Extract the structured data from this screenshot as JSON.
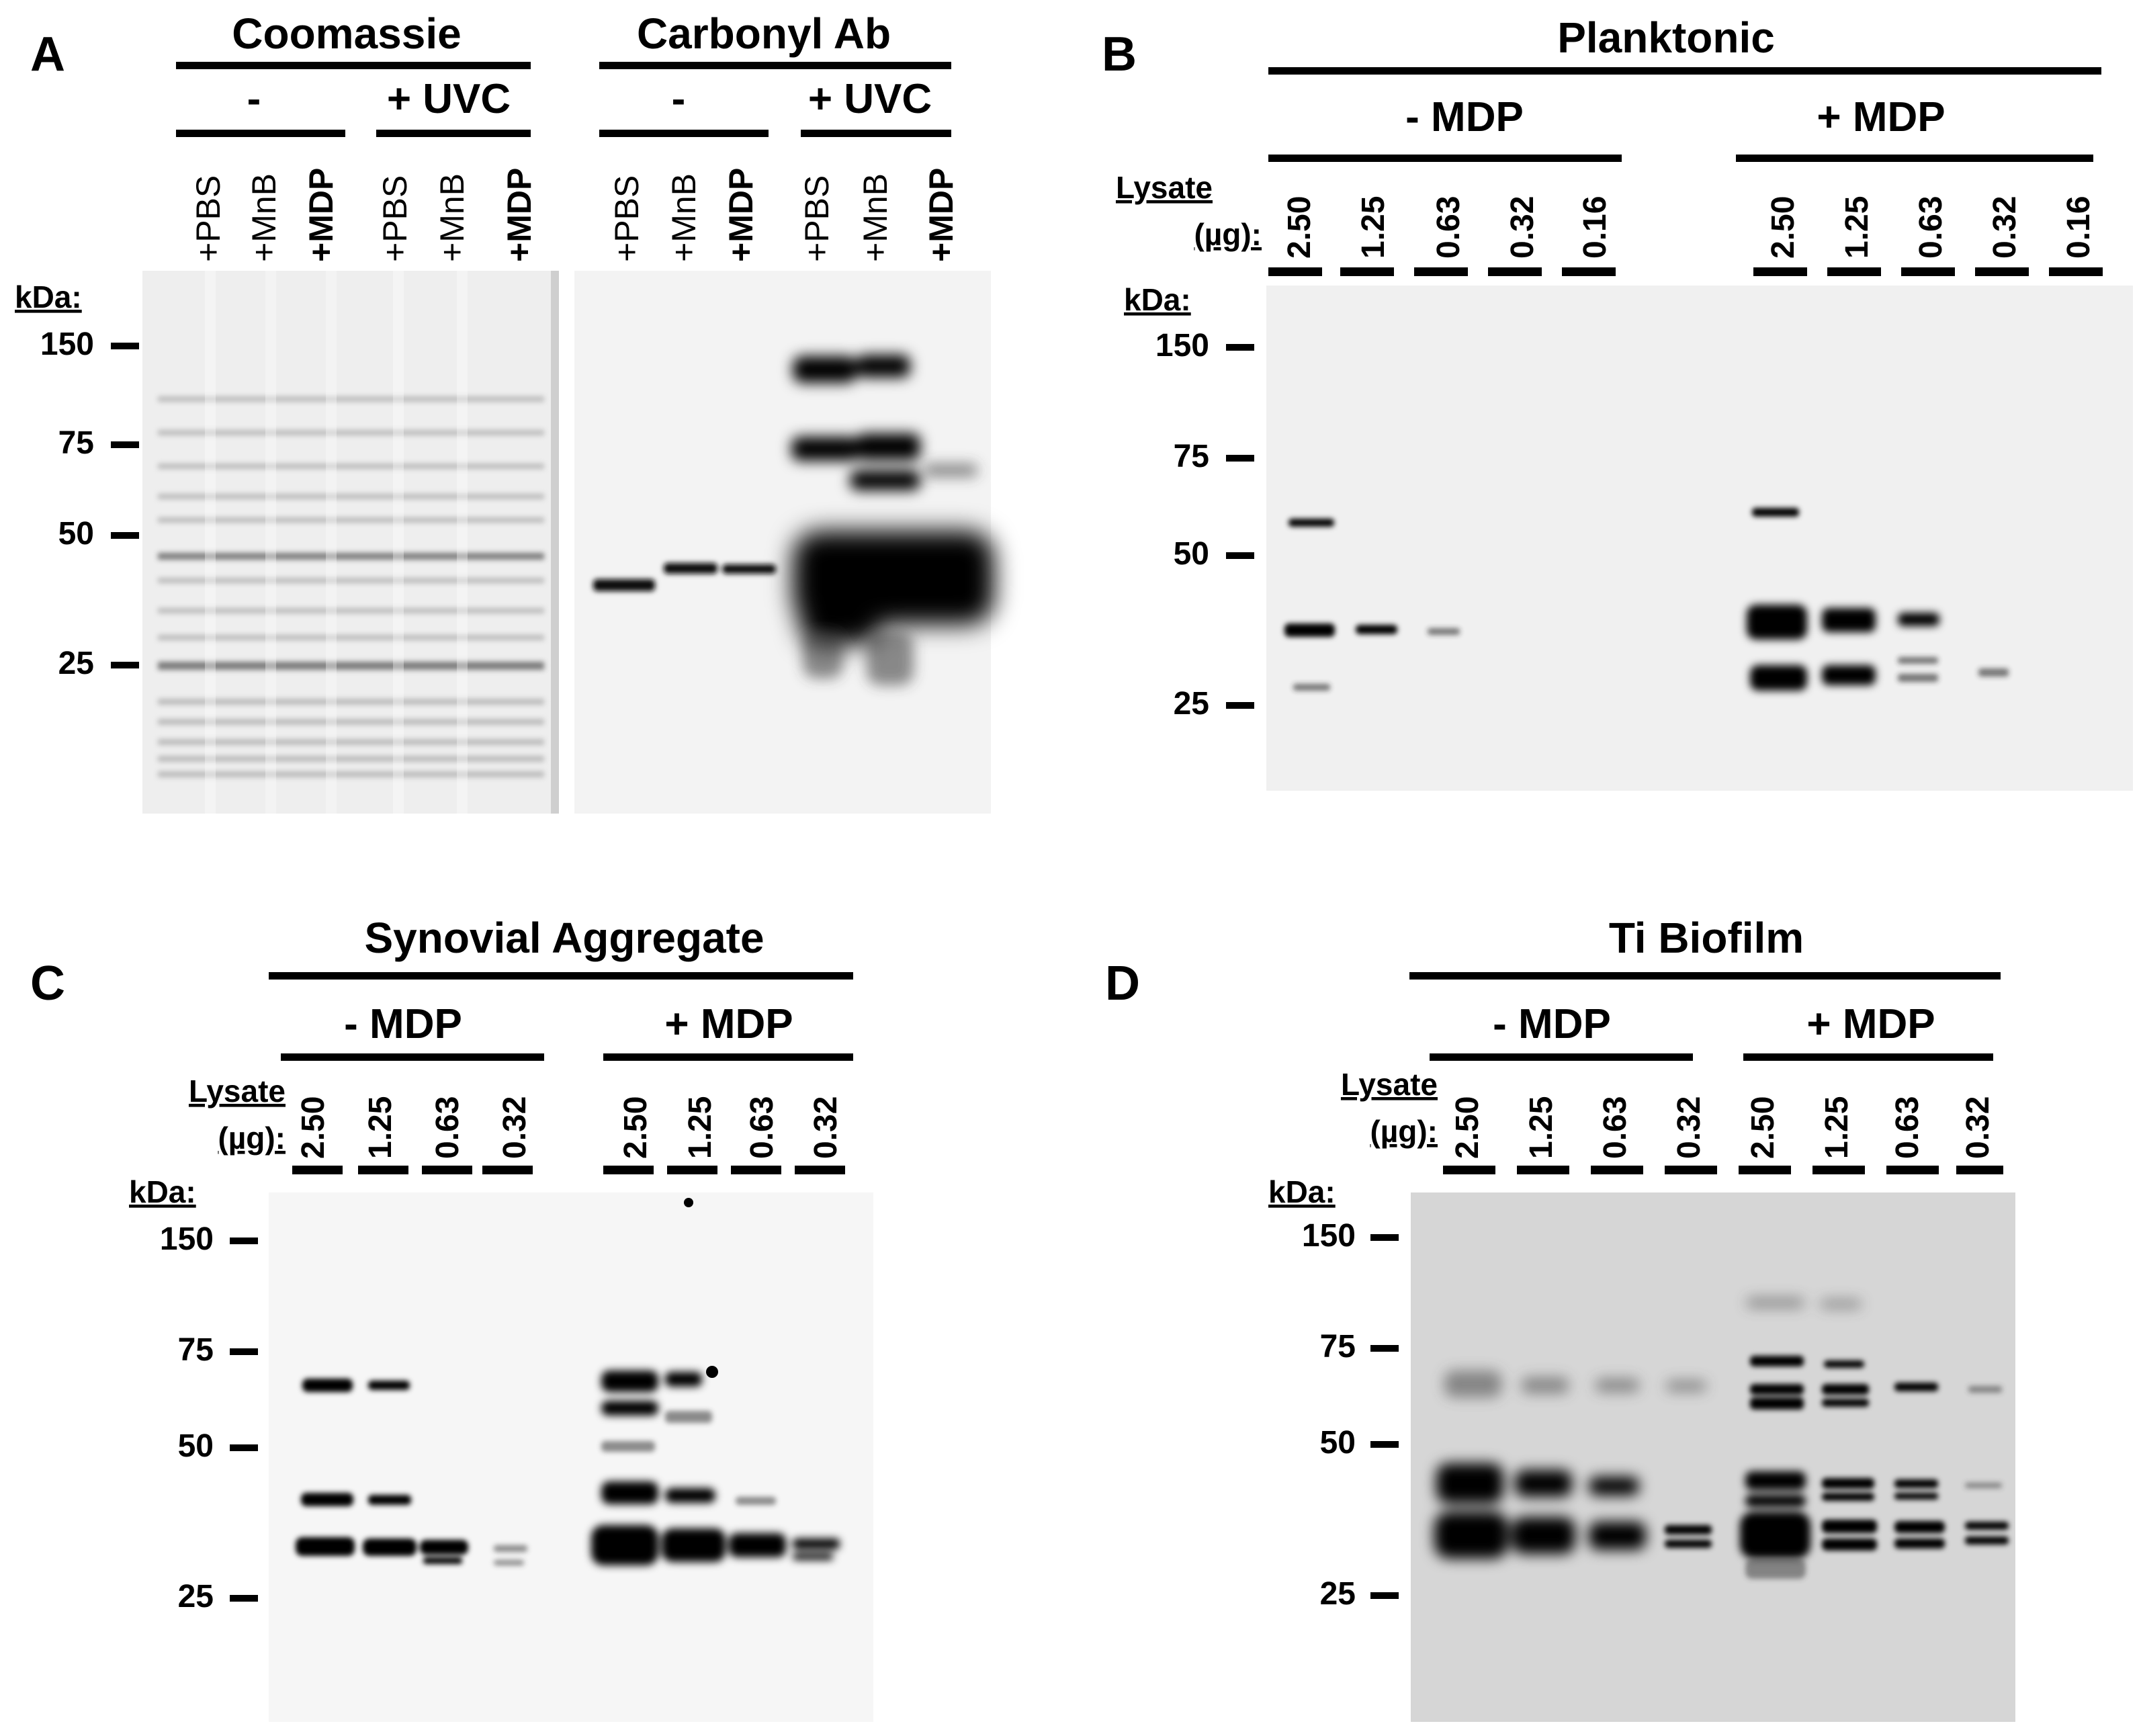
{
  "panels": [
    {
      "id": "A",
      "label": "A",
      "kda_label": "kDa:",
      "markers": [
        "150",
        "75",
        "50",
        "25"
      ],
      "blots": [
        {
          "name": "coomassie",
          "title": "Coomassie",
          "groups": [
            {
              "label": "-",
              "lanes": [
                "+PBS",
                "+MnB",
                "+MDP"
              ]
            },
            {
              "label": "+ UVC",
              "lanes": [
                "+PBS",
                "+MnB",
                "+MDP"
              ]
            }
          ]
        },
        {
          "name": "carbonyl-ab",
          "title": "Carbonyl Ab",
          "groups": [
            {
              "label": "-",
              "lanes": [
                "+PBS",
                "+MnB",
                "+MDP"
              ]
            },
            {
              "label": "+ UVC",
              "lanes": [
                "+PBS",
                "+MnB",
                "+MDP"
              ]
            }
          ]
        }
      ]
    },
    {
      "id": "B",
      "label": "B",
      "title": "Planktonic",
      "lysate_label": "Lysate",
      "ug_label": "(µg):",
      "kda_label": "kDa:",
      "markers": [
        "150",
        "75",
        "50",
        "25"
      ],
      "groups": [
        {
          "label": "- MDP",
          "lanes": [
            "2.50",
            "1.25",
            "0.63",
            "0.32",
            "0.16"
          ]
        },
        {
          "label": "+ MDP",
          "lanes": [
            "2.50",
            "1.25",
            "0.63",
            "0.32",
            "0.16"
          ]
        }
      ]
    },
    {
      "id": "C",
      "label": "C",
      "title": "Synovial Aggregate",
      "lysate_label": "Lysate",
      "ug_label": "(µg):",
      "kda_label": "kDa:",
      "markers": [
        "150",
        "75",
        "50",
        "25"
      ],
      "groups": [
        {
          "label": "- MDP",
          "lanes": [
            "2.50",
            "1.25",
            "0.63",
            "0.32"
          ]
        },
        {
          "label": "+ MDP",
          "lanes": [
            "2.50",
            "1.25",
            "0.63",
            "0.32"
          ]
        }
      ]
    },
    {
      "id": "D",
      "label": "D",
      "title": "Ti Biofilm",
      "lysate_label": "Lysate",
      "ug_label": "(µg):",
      "kda_label": "kDa:",
      "markers": [
        "150",
        "75",
        "50",
        "25"
      ],
      "groups": [
        {
          "label": "- MDP",
          "lanes": [
            "2.50",
            "1.25",
            "0.63",
            "0.32"
          ]
        },
        {
          "label": "+ MDP",
          "lanes": [
            "2.50",
            "1.25",
            "0.63",
            "0.32"
          ]
        }
      ]
    }
  ]
}
